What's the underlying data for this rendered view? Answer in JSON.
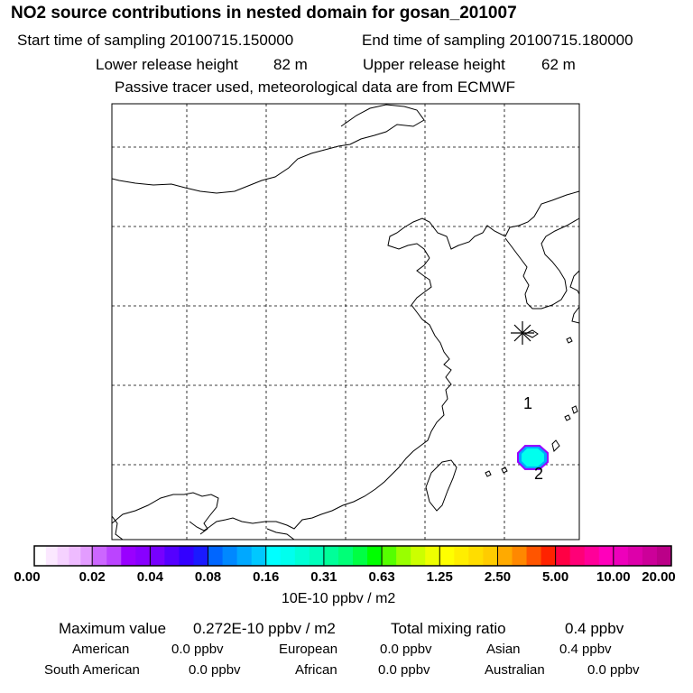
{
  "header": {
    "title": "NO2 source contributions in nested domain for gosan_201007",
    "start_label": "Start time of sampling 20100715.150000",
    "end_label": "End time of sampling 20100715.180000",
    "lower_label": "Lower release height",
    "lower_value": "82 m",
    "upper_label": "Upper release height",
    "upper_value": "62 m",
    "tracer_note": "Passive tracer used, meteorological data are from ECMWF"
  },
  "chart_data": {
    "type": "heatmap",
    "title": "NO2 source contributions in nested domain for gosan_201007",
    "grid": true,
    "grid_cols": 6,
    "grid_rows": 5,
    "station_marker": "asterisk",
    "numbered_points": [
      {
        "label": "1"
      },
      {
        "label": "2"
      }
    ],
    "plume_value_range": "0.08 to 0.31",
    "colorbar": {
      "ticks": [
        "0.00",
        "0.02",
        "0.04",
        "0.08",
        "0.16",
        "0.31",
        "0.63",
        "1.25",
        "2.50",
        "5.00",
        "10.00",
        "20.00"
      ],
      "colors": [
        "#ffffff",
        "#fbe8ff",
        "#f5d2ff",
        "#eebbff",
        "#e39cff",
        "#cc66ff",
        "#bb44ff",
        "#9900ff",
        "#8800ff",
        "#7700ff",
        "#5500ff",
        "#3300ff",
        "#1a1aff",
        "#0066ff",
        "#0088ff",
        "#00a8ff",
        "#00c8ff",
        "#00ffff",
        "#00ffee",
        "#00ffd5",
        "#00ffbb",
        "#00ff99",
        "#00ff77",
        "#00ff44",
        "#00ff00",
        "#55ff00",
        "#99ff00",
        "#ccff00",
        "#eeff00",
        "#ffff00",
        "#ffee00",
        "#ffdd00",
        "#ffcc00",
        "#ffaa00",
        "#ff8800",
        "#ff5500",
        "#ff2200",
        "#ff0044",
        "#ff0077",
        "#ff0099",
        "#ff00bb",
        "#ee00bb",
        "#dd00aa",
        "#cc0099",
        "#bb0088",
        "#aa0088",
        "#880077",
        "#660066",
        "#440044"
      ],
      "units": "10E-10 ppbv / m2"
    }
  },
  "footer": {
    "max_label": "Maximum value",
    "max_value": "0.272E-10 ppbv / m2",
    "total_label": "Total mixing ratio",
    "total_value": "0.4 ppbv",
    "regions": [
      {
        "name": "American",
        "value": "0.0 ppbv"
      },
      {
        "name": "European",
        "value": "0.0 ppbv"
      },
      {
        "name": "Asian",
        "value": "0.4 ppbv"
      },
      {
        "name": "South American",
        "value": "0.0 ppbv"
      },
      {
        "name": "African",
        "value": "0.0 ppbv"
      },
      {
        "name": "Australian",
        "value": "0.0 ppbv"
      }
    ]
  }
}
